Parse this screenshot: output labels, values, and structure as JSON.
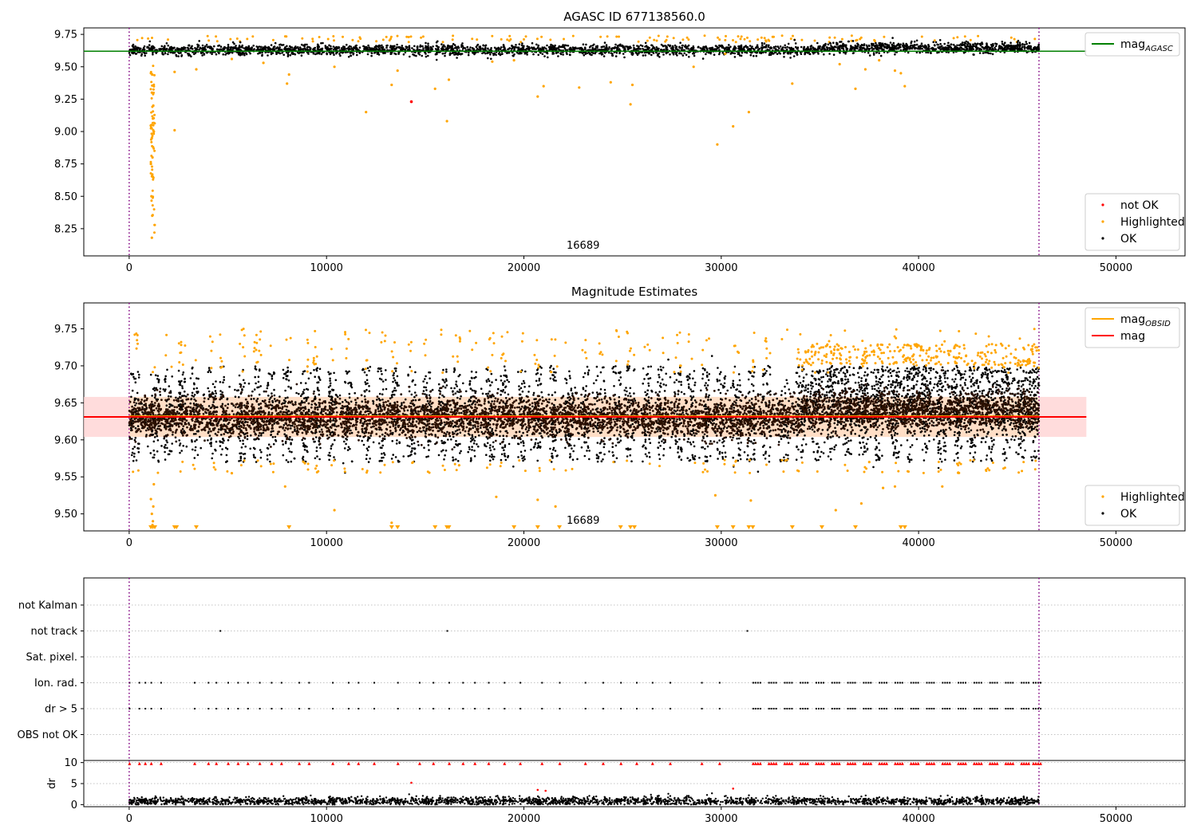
{
  "colors": {
    "ok": "#000000",
    "highlighted": "#ffa500",
    "not_ok": "#ff0000",
    "mag_agasc": "#008000",
    "mag_obsid": "#ffa500",
    "mag": "#ff0000",
    "band_mag": "#ffd0d0",
    "band_obsid": "#ffdfbf",
    "obsid_marker": "#800080",
    "dense_core": "#2b1000"
  },
  "chart_data": [
    {
      "type": "scatter",
      "title": "AGASC ID 677138560.0",
      "xlim": [
        -2300,
        53500
      ],
      "ylim": [
        8.04,
        9.8
      ],
      "xticks": [
        0,
        10000,
        20000,
        30000,
        40000,
        50000
      ],
      "xtick_labels": [
        "0",
        "10000",
        "20000",
        "30000",
        "40000",
        "50000"
      ],
      "yticks": [
        8.25,
        8.5,
        8.75,
        9.0,
        9.25,
        9.5,
        9.75
      ],
      "ytick_labels": [
        "8.25",
        "8.50",
        "8.75",
        "9.00",
        "9.25",
        "9.50",
        "9.75"
      ],
      "annotation": {
        "x": 23000,
        "text": "16689"
      },
      "obsid_bounds": [
        0,
        46100
      ],
      "hlines": [
        {
          "name": "mag_AGASC",
          "y": 9.62,
          "x_range": [
            -2300,
            48500
          ],
          "color_key": "mag_agasc"
        }
      ],
      "legends": [
        {
          "placement": "top-right",
          "entries": [
            {
              "label": "mag",
              "sub": "AGASC",
              "kind": "line",
              "color_key": "mag_agasc"
            }
          ]
        },
        {
          "placement": "bottom-right",
          "entries": [
            {
              "label": "not OK",
              "kind": "dot",
              "color_key": "not_ok"
            },
            {
              "label": "Highlighted",
              "kind": "dot",
              "color_key": "highlighted"
            },
            {
              "label": "OK",
              "kind": "dot",
              "color_key": "ok"
            }
          ]
        }
      ],
      "core": {
        "x_range": [
          0,
          46100
        ],
        "y_mean": 9.63,
        "y_spread": 0.045,
        "count": 3000
      },
      "highlighted_points": [
        [
          1100,
          9.45
        ],
        [
          1150,
          9.3
        ],
        [
          1200,
          9.1
        ],
        [
          1150,
          8.95
        ],
        [
          1180,
          8.8
        ],
        [
          1200,
          8.65
        ],
        [
          1130,
          8.5
        ],
        [
          1170,
          8.35
        ],
        [
          1150,
          8.18
        ],
        [
          1220,
          9.2
        ],
        [
          1250,
          9.0
        ],
        [
          1100,
          8.75
        ],
        [
          2300,
          9.01
        ],
        [
          2300,
          9.46
        ],
        [
          3400,
          9.48
        ],
        [
          5200,
          9.56
        ],
        [
          6800,
          9.53
        ],
        [
          8000,
          9.37
        ],
        [
          8100,
          9.44
        ],
        [
          10400,
          9.5
        ],
        [
          12000,
          9.15
        ],
        [
          13300,
          9.36
        ],
        [
          13600,
          9.47
        ],
        [
          15500,
          9.33
        ],
        [
          16100,
          9.08
        ],
        [
          16200,
          9.4
        ],
        [
          18400,
          9.54
        ],
        [
          19500,
          9.55
        ],
        [
          20700,
          9.27
        ],
        [
          21000,
          9.35
        ],
        [
          22800,
          9.34
        ],
        [
          24400,
          9.38
        ],
        [
          25400,
          9.21
        ],
        [
          25500,
          9.36
        ],
        [
          28600,
          9.5
        ],
        [
          29800,
          8.9
        ],
        [
          30200,
          9.6
        ],
        [
          30600,
          9.04
        ],
        [
          31400,
          9.15
        ],
        [
          33600,
          9.37
        ],
        [
          36800,
          9.33
        ],
        [
          37300,
          9.48
        ],
        [
          38000,
          9.55
        ],
        [
          38800,
          9.47
        ],
        [
          39100,
          9.45
        ],
        [
          39300,
          9.35
        ],
        [
          36000,
          9.52
        ]
      ],
      "highlighted_top": {
        "y_range": [
          9.69,
          9.74
        ],
        "count": 130
      },
      "not_ok_points": [
        [
          14300,
          9.23
        ]
      ]
    },
    {
      "type": "scatter",
      "title": "Magnitude Estimates",
      "xlim": [
        -2300,
        53500
      ],
      "ylim": [
        9.477,
        9.785
      ],
      "xticks": [
        0,
        10000,
        20000,
        30000,
        40000,
        50000
      ],
      "xtick_labels": [
        "0",
        "10000",
        "20000",
        "30000",
        "40000",
        "50000"
      ],
      "yticks": [
        9.5,
        9.55,
        9.6,
        9.65,
        9.7,
        9.75
      ],
      "ytick_labels": [
        "9.50",
        "9.55",
        "9.60",
        "9.65",
        "9.70",
        "9.75"
      ],
      "annotation": {
        "x": 23000,
        "text": "16689"
      },
      "obsid_bounds": [
        0,
        46100
      ],
      "bands": [
        {
          "x_range": [
            -2300,
            48500
          ],
          "y_range": [
            9.604,
            9.658
          ],
          "color_key": "band_mag"
        },
        {
          "x_range": [
            0,
            46100
          ],
          "y_range": [
            9.604,
            9.658
          ],
          "color_key": "band_obsid"
        }
      ],
      "hlines": [
        {
          "name": "mag_OBSID",
          "y": 9.632,
          "x_range": [
            0,
            46100
          ],
          "color_key": "mag_obsid"
        },
        {
          "name": "mag",
          "y": 9.631,
          "x_range": [
            -2300,
            48500
          ],
          "color_key": "mag"
        }
      ],
      "legends": [
        {
          "placement": "top-right",
          "entries": [
            {
              "label": "mag",
              "sub": "OBSID",
              "kind": "line",
              "color_key": "mag_obsid"
            },
            {
              "label": "mag",
              "kind": "line",
              "color_key": "mag"
            }
          ]
        },
        {
          "placement": "bottom-right",
          "entries": [
            {
              "label": "Highlighted",
              "kind": "dot",
              "color_key": "highlighted"
            },
            {
              "label": "OK",
              "kind": "dot",
              "color_key": "ok"
            }
          ]
        }
      ],
      "core": {
        "x_range": [
          0,
          46100
        ],
        "y_mean": 9.63,
        "y_spread": 0.018,
        "count": 5000
      },
      "spikes": [
        300,
        1300,
        2000,
        2700,
        3300,
        4200,
        4800,
        5700,
        6500,
        7200,
        8000,
        8900,
        9500,
        10300,
        11100,
        12000,
        12800,
        13500,
        14300,
        15100,
        15900,
        16600,
        17400,
        18300,
        19000,
        19900,
        20700,
        21500,
        22300,
        23100,
        23900,
        24700,
        25400,
        26200,
        27000,
        27800,
        28500,
        29200,
        30000,
        30800,
        31500,
        32300,
        33200,
        34000,
        34800,
        35600,
        36400,
        37200,
        38000,
        38800,
        39600,
        40400,
        41200,
        42000,
        42800,
        43600,
        44400,
        45200,
        45900
      ],
      "spike_range": [
        9.57,
        9.7
      ],
      "highlighted_points": [
        [
          1100,
          9.52
        ],
        [
          1150,
          9.5
        ],
        [
          1200,
          9.49
        ],
        [
          1250,
          9.54
        ],
        [
          1180,
          9.485
        ],
        [
          1220,
          9.51
        ],
        [
          5200,
          9.555
        ],
        [
          7900,
          9.537
        ],
        [
          10400,
          9.505
        ],
        [
          13300,
          9.488
        ],
        [
          18600,
          9.523
        ],
        [
          20700,
          9.519
        ],
        [
          21600,
          9.51
        ],
        [
          29700,
          9.525
        ],
        [
          31500,
          9.518
        ],
        [
          35800,
          9.505
        ],
        [
          37100,
          9.514
        ],
        [
          38800,
          9.537
        ],
        [
          41200,
          9.537
        ],
        [
          37500,
          9.57
        ],
        [
          38200,
          9.535
        ]
      ],
      "clip_markers": [
        1100,
        1200,
        1300,
        2300,
        2400,
        3400,
        8100,
        13300,
        13600,
        15500,
        16100,
        16200,
        19500,
        20700,
        21800,
        24900,
        25400,
        25600,
        29800,
        30600,
        31400,
        31600,
        33600,
        35100,
        36800,
        39100,
        39300
      ],
      "highlighted_top": {
        "y_range": [
          9.69,
          9.75
        ],
        "count": 260
      }
    },
    {
      "type": "scatter",
      "categories": [
        "not Kalman",
        "not track",
        "Sat. pixel.",
        "Ion. rad.",
        "dr > 5",
        "OBS not OK"
      ],
      "xlim": [
        -2300,
        53500
      ],
      "obsid_bounds": [
        0,
        46100
      ],
      "events": {
        "not track": [
          4800,
          16300,
          31500
        ],
        "Ion. rad.": [
          200,
          700,
          1000,
          1300,
          1800,
          3500,
          4200,
          4600,
          5200,
          5700,
          6200,
          6800,
          7400,
          7900,
          8800,
          9300,
          10500,
          11300,
          11800,
          12600,
          13800,
          14900,
          15600,
          16400,
          17100,
          17700,
          18400,
          19200,
          20000,
          21100,
          22000,
          23300,
          24200,
          25100,
          25900,
          26700,
          27600,
          29200,
          30100,
          31800,
          32600,
          33400,
          34200,
          35000,
          35800,
          36600,
          37400,
          38200,
          39000,
          39800,
          40600,
          41400,
          42200,
          43000,
          43800,
          44600,
          45400,
          46000
        ],
        "dr > 5": [
          200,
          700,
          1000,
          1300,
          1800,
          3500,
          4200,
          4600,
          5200,
          5700,
          6200,
          6800,
          7400,
          7900,
          8800,
          9300,
          10500,
          11300,
          11800,
          12600,
          13800,
          14900,
          15600,
          16400,
          17100,
          17700,
          18400,
          19200,
          20000,
          21100,
          22000,
          23300,
          24200,
          25100,
          25900,
          26700,
          27600,
          29200,
          30100,
          31800,
          32600,
          33400,
          34200,
          35000,
          35800,
          36600,
          37400,
          38200,
          39000,
          39800,
          40600,
          41400,
          42200,
          43000,
          43800,
          44600,
          45400,
          46000
        ]
      }
    },
    {
      "type": "scatter",
      "ylabel": "dr",
      "xlim": [
        -2300,
        53500
      ],
      "ylim": [
        -0.5,
        10.5
      ],
      "xticks": [
        0,
        10000,
        20000,
        30000,
        40000,
        50000
      ],
      "xtick_labels": [
        "0",
        "10000",
        "20000",
        "30000",
        "40000",
        "50000"
      ],
      "yticks": [
        0,
        5,
        10
      ],
      "ytick_labels": [
        "0",
        "5",
        "10"
      ],
      "obsid_bounds": [
        0,
        46100
      ],
      "core": {
        "x_range": [
          0,
          46100
        ],
        "y_mean": 0.8,
        "y_spread": 0.5,
        "count": 2500
      },
      "clip_value": 9.8,
      "clip_points": [
        200,
        700,
        1000,
        1300,
        1800,
        3500,
        4200,
        4600,
        5200,
        5700,
        6200,
        6800,
        7400,
        7900,
        8800,
        9300,
        10500,
        11300,
        11800,
        12600,
        13800,
        14900,
        15600,
        16400,
        17100,
        17700,
        18400,
        19200,
        20000,
        21100,
        22000,
        23300,
        24200,
        25100,
        25900,
        26700,
        27600,
        29200,
        30100,
        31800,
        32600,
        33400,
        34200,
        35000,
        35800,
        36600,
        37400,
        38200,
        39000,
        39800,
        40600,
        41400,
        42200,
        43000,
        43800,
        44600,
        45400,
        46000
      ],
      "red_points": [
        [
          14300,
          5.2
        ],
        [
          20700,
          3.5
        ],
        [
          21100,
          3.3
        ],
        [
          30600,
          3.8
        ]
      ]
    }
  ]
}
